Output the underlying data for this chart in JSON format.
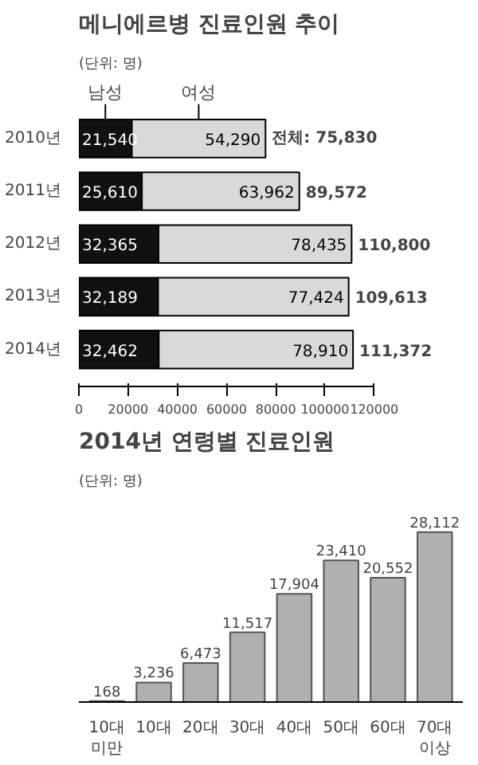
{
  "chart_data": [
    {
      "type": "bar",
      "orientation": "horizontal",
      "stacked": true,
      "title": "메니에르병 진료인원 추이",
      "subtitle": "(단위: 명)",
      "categories": [
        "2010년",
        "2011년",
        "2012년",
        "2013년",
        "2014년"
      ],
      "series": [
        {
          "name": "남성",
          "color": "#111111",
          "values": [
            21540,
            25610,
            32365,
            32189,
            32462
          ],
          "value_labels": [
            "21,540",
            "25,610",
            "32,365",
            "32,189",
            "32,462"
          ]
        },
        {
          "name": "여성",
          "color": "#d9d9d9",
          "values": [
            54290,
            63962,
            78435,
            77424,
            78910
          ],
          "value_labels": [
            "54,290",
            "63,962",
            "78,435",
            "77,424",
            "78,910"
          ]
        }
      ],
      "totals": [
        "전체: 75,830",
        "89,572",
        "110,800",
        "109,613",
        "111,372"
      ],
      "xlim": [
        0,
        120000
      ],
      "xticks": [
        0,
        20000,
        40000,
        60000,
        80000,
        100000,
        120000
      ],
      "grid": false,
      "legend": "top"
    },
    {
      "type": "bar",
      "title": "2014년 연령별 진료인원",
      "subtitle": "(단위: 명)",
      "categories": [
        "10대\n미만",
        "10대",
        "20대",
        "30대",
        "40대",
        "50대",
        "60대",
        "70대\n이상"
      ],
      "values": [
        168,
        3236,
        6473,
        11517,
        17904,
        23410,
        20552,
        28112
      ],
      "color": "#b0b0b0",
      "value_labels": [
        "168",
        "3,236",
        "6,473",
        "11,517",
        "17,904",
        "23,410",
        "20,552",
        "28,112"
      ]
    }
  ]
}
